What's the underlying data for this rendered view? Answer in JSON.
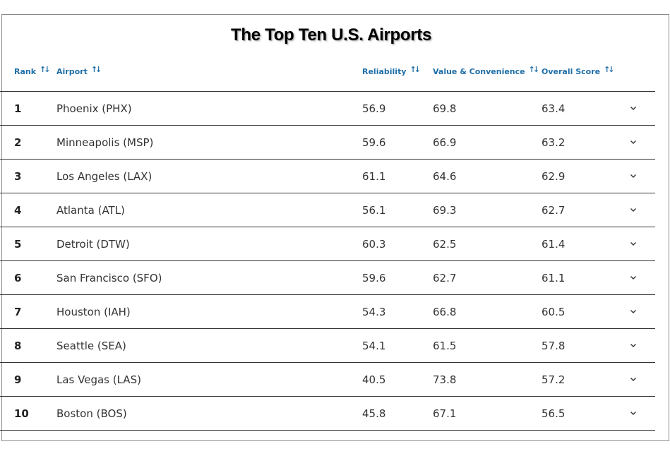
{
  "chart_data": {
    "type": "table",
    "title": "The Top Ten U.S. Airports",
    "columns": [
      "Rank",
      "Airport",
      "Reliability",
      "Value & Convenience",
      "Overall Score"
    ],
    "sort_icon": "sort-up-down-arrows-icon",
    "expand_icon": "chevron-down-icon",
    "rows": [
      {
        "rank": "1",
        "airport": "Phoenix (PHX)",
        "reliability": "56.9",
        "value": "69.8",
        "overall": "63.4"
      },
      {
        "rank": "2",
        "airport": "Minneapolis (MSP)",
        "reliability": "59.6",
        "value": "66.9",
        "overall": "63.2"
      },
      {
        "rank": "3",
        "airport": "Los Angeles (LAX)",
        "reliability": "61.1",
        "value": "64.6",
        "overall": "62.9"
      },
      {
        "rank": "4",
        "airport": "Atlanta (ATL)",
        "reliability": "56.1",
        "value": "69.3",
        "overall": "62.7"
      },
      {
        "rank": "5",
        "airport": "Detroit (DTW)",
        "reliability": "60.3",
        "value": "62.5",
        "overall": "61.4"
      },
      {
        "rank": "6",
        "airport": "San Francisco (SFO)",
        "reliability": "59.6",
        "value": "62.7",
        "overall": "61.1"
      },
      {
        "rank": "7",
        "airport": "Houston (IAH)",
        "reliability": "54.3",
        "value": "66.8",
        "overall": "60.5"
      },
      {
        "rank": "8",
        "airport": "Seattle (SEA)",
        "reliability": "54.1",
        "value": "61.5",
        "overall": "57.8"
      },
      {
        "rank": "9",
        "airport": "Las Vegas (LAS)",
        "reliability": "40.5",
        "value": "73.8",
        "overall": "57.2"
      },
      {
        "rank": "10",
        "airport": "Boston (BOS)",
        "reliability": "45.8",
        "value": "67.1",
        "overall": "56.5"
      }
    ],
    "colors": {
      "header_text": "#1f6fa8",
      "row_divider": "#333333",
      "frame": "#8a8a8a"
    }
  }
}
